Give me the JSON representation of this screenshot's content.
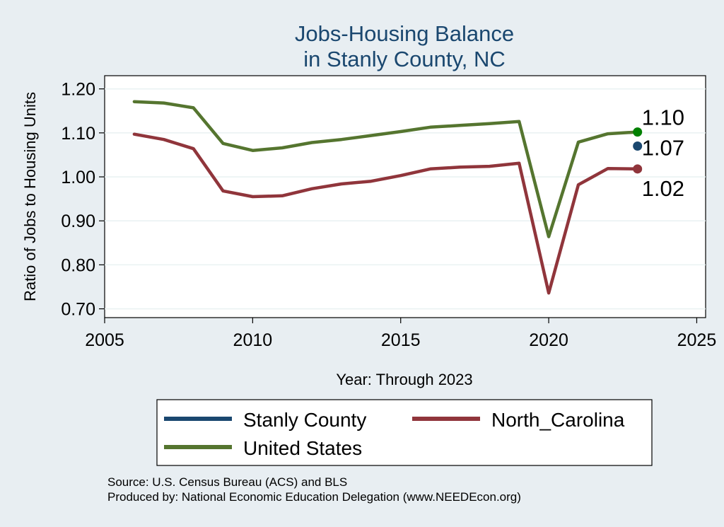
{
  "chart_data": {
    "type": "line",
    "title": [
      "Jobs-Housing Balance",
      "in Stanly County, NC"
    ],
    "xlabel": "Year: Through 2023",
    "ylabel": "Ratio of Jobs to Housing Units",
    "xlim": [
      2005,
      2025.3
    ],
    "ylim": [
      0.68,
      1.23
    ],
    "x_ticks": [
      2005,
      2010,
      2015,
      2020,
      2025
    ],
    "y_ticks": [
      0.7,
      0.8,
      0.9,
      1.0,
      1.1,
      1.2
    ],
    "y_tick_labels": [
      "0.70",
      "0.80",
      "0.90",
      "1.00",
      "1.10",
      "1.20"
    ],
    "grid": true,
    "series": [
      {
        "name": "Stanly County",
        "color": "#1a476f",
        "x": [
          2023
        ],
        "values": [
          1.07
        ],
        "end_label": "1.07"
      },
      {
        "name": "North_Carolina",
        "color": "#90353b",
        "x": [
          2006,
          2007,
          2008,
          2009,
          2010,
          2011,
          2012,
          2013,
          2014,
          2015,
          2016,
          2017,
          2018,
          2019,
          2020,
          2021,
          2022,
          2023
        ],
        "values": [
          1.097,
          1.085,
          1.064,
          0.968,
          0.955,
          0.957,
          0.973,
          0.984,
          0.99,
          1.003,
          1.018,
          1.022,
          1.024,
          1.031,
          0.736,
          0.982,
          1.019,
          1.018
        ],
        "end_label": "1.02"
      },
      {
        "name": "United States",
        "color": "#55752f",
        "x": [
          2006,
          2007,
          2008,
          2009,
          2010,
          2011,
          2012,
          2013,
          2014,
          2015,
          2016,
          2017,
          2018,
          2019,
          2020,
          2021,
          2022,
          2023
        ],
        "values": [
          1.171,
          1.168,
          1.157,
          1.076,
          1.06,
          1.066,
          1.078,
          1.085,
          1.094,
          1.103,
          1.113,
          1.117,
          1.121,
          1.126,
          0.864,
          1.079,
          1.098,
          1.102
        ],
        "end_label": "1.10",
        "end_marker_color": "#008000"
      }
    ],
    "legend": {
      "position": "bottom",
      "entries": [
        "Stanly County",
        "North_Carolina",
        "United States"
      ]
    }
  },
  "source_lines": [
    "Source: U.S. Census Bureau (ACS) and BLS",
    "Produced by: National Economic Education Delegation (www.NEEDEcon.org)"
  ]
}
